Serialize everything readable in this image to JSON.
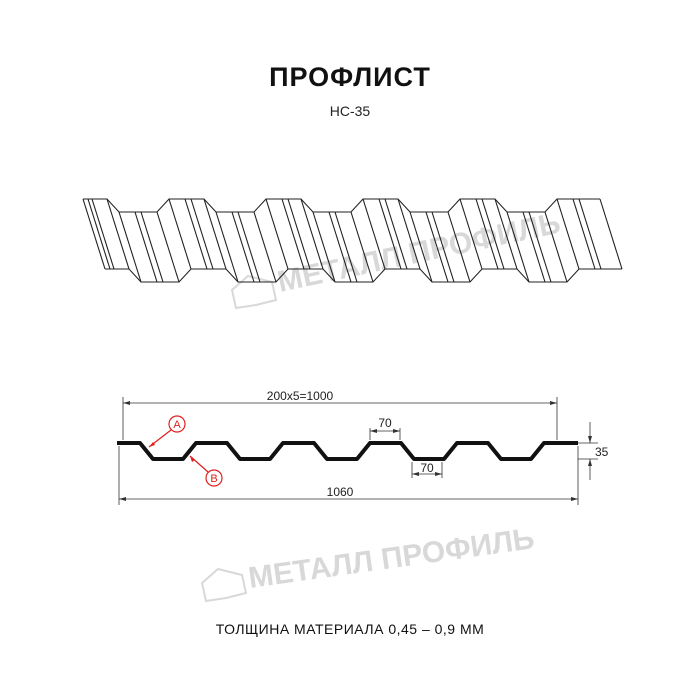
{
  "title": "ПРОФЛИСТ",
  "subtitle": "НС-35",
  "watermark": "МЕТАЛЛ ПРОФИЛЬ",
  "dimensions": {
    "pitch": "200x5=1000",
    "top_width": "70",
    "bottom_width": "70",
    "height": "35",
    "total_width": "1060"
  },
  "callouts": {
    "a": "A",
    "b": "B"
  },
  "thickness": "ТОЛЩИНА МАТЕРИАЛА 0,45 – 0,9 ММ",
  "colors": {
    "profile": "#111111",
    "callout": "#e02020",
    "watermark": "#d8d8d8"
  }
}
